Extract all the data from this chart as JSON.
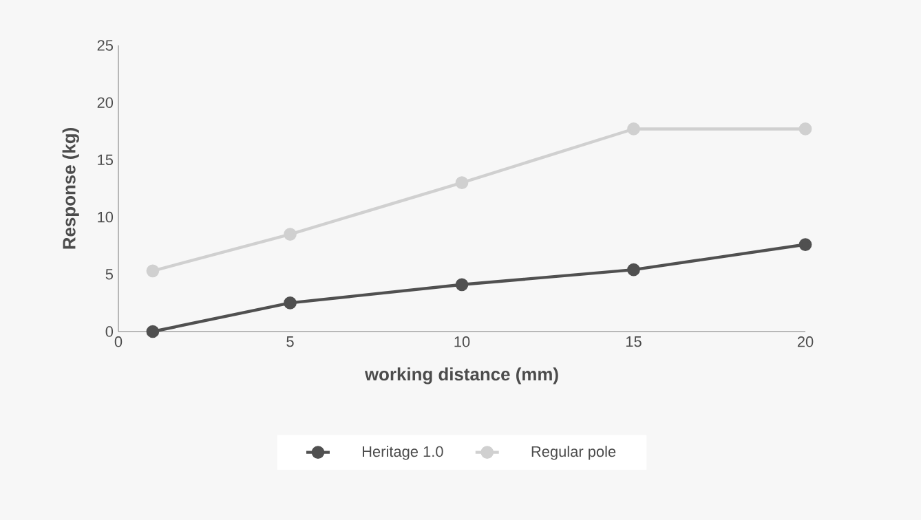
{
  "chart_data": {
    "type": "line",
    "xlabel": "working distance (mm)",
    "ylabel": "Response (kg)",
    "x": [
      1,
      5,
      10,
      15,
      20
    ],
    "series": [
      {
        "name": "Heritage 1.0",
        "color": "#505050",
        "values": [
          0,
          2.5,
          4.1,
          5.4,
          7.6
        ]
      },
      {
        "name": "Regular pole",
        "color": "#d0d0d0",
        "values": [
          5.3,
          8.5,
          13,
          17.7,
          17.7
        ]
      }
    ],
    "xlim": [
      0,
      20
    ],
    "xticks": [
      0,
      5,
      10,
      15,
      20
    ],
    "ylim": [
      0,
      25
    ],
    "yticks": [
      0,
      5,
      10,
      15,
      20,
      25
    ],
    "grid": false,
    "legend": "bottom",
    "marker": "circle",
    "line_style": "solid"
  }
}
